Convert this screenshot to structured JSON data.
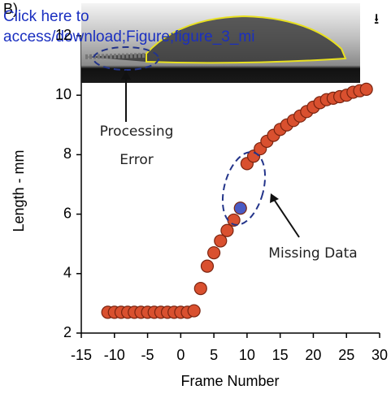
{
  "header": {
    "label": "B)",
    "link": [
      "Click here to",
      "access/download;Figure;figure_3_mi"
    ],
    "download_icon": "⭳"
  },
  "chart_data": {
    "type": "scatter",
    "x_label": "Frame Number",
    "y_label": "Length - mm",
    "annotations": [
      [
        "Processing",
        "Error"
      ],
      [
        "Missing Data"
      ]
    ],
    "xlim": [
      -15,
      30
    ],
    "xticks": [
      -15,
      -10,
      -5,
      0,
      5,
      10,
      15,
      20,
      25,
      30
    ],
    "ylim": [
      2,
      12
    ],
    "yticks": [
      2,
      4,
      6,
      8,
      10,
      12
    ],
    "series": [
      {
        "color": "#d9502f",
        "x": [
          -11,
          -10,
          -9,
          -8,
          -7,
          -6,
          -5,
          -4,
          -3,
          -2,
          -1,
          0,
          1,
          2,
          3,
          4,
          5,
          6,
          7,
          8,
          10,
          11,
          12,
          13,
          14,
          15,
          16,
          17,
          18,
          19,
          20,
          21,
          22,
          23,
          24,
          25,
          26,
          27,
          28
        ],
        "values": [
          2.7,
          2.7,
          2.7,
          2.7,
          2.7,
          2.7,
          2.7,
          2.7,
          2.7,
          2.7,
          2.7,
          2.7,
          2.7,
          2.75,
          3.5,
          4.25,
          4.7,
          5.1,
          5.45,
          5.8,
          7.7,
          7.95,
          8.2,
          8.45,
          8.65,
          8.85,
          9.0,
          9.15,
          9.3,
          9.45,
          9.6,
          9.75,
          9.85,
          9.9,
          9.95,
          10.0,
          10.1,
          10.15,
          10.2
        ]
      },
      {
        "color": "#4a5bc4",
        "x": [
          9
        ],
        "values": [
          6.2
        ]
      }
    ]
  }
}
